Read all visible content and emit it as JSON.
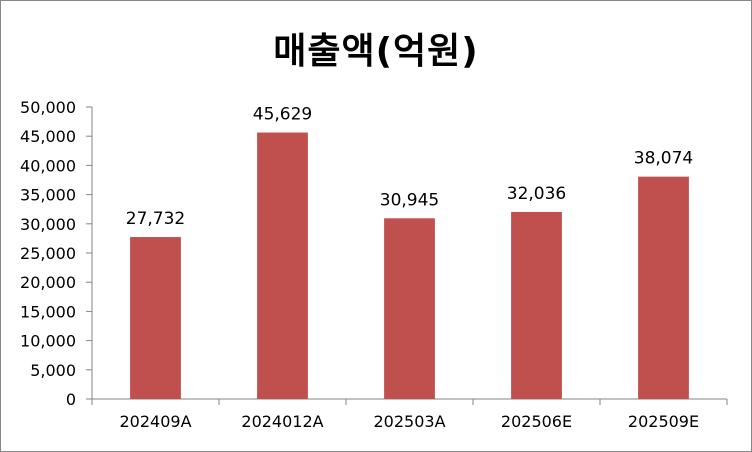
{
  "chart_data": {
    "type": "bar",
    "title": "매출액(억원)",
    "categories": [
      "202409A",
      "2024012A",
      "202503A",
      "202506E",
      "202509E"
    ],
    "values": [
      27732,
      45629,
      30945,
      32036,
      38074
    ],
    "value_labels": [
      "27,732",
      "45,629",
      "30,945",
      "32,036",
      "38,074"
    ],
    "ylim": [
      0,
      50000
    ],
    "y_ticks": [
      0,
      5000,
      10000,
      15000,
      20000,
      25000,
      30000,
      35000,
      40000,
      45000,
      50000
    ],
    "y_tick_labels": [
      "0",
      "5,000",
      "10,000",
      "15,000",
      "20,000",
      "25,000",
      "30,000",
      "35,000",
      "40,000",
      "45,000",
      "50,000"
    ],
    "xlabel": "",
    "ylabel": "",
    "grid": false,
    "legend": "none",
    "bar_color": "#C0504D"
  }
}
